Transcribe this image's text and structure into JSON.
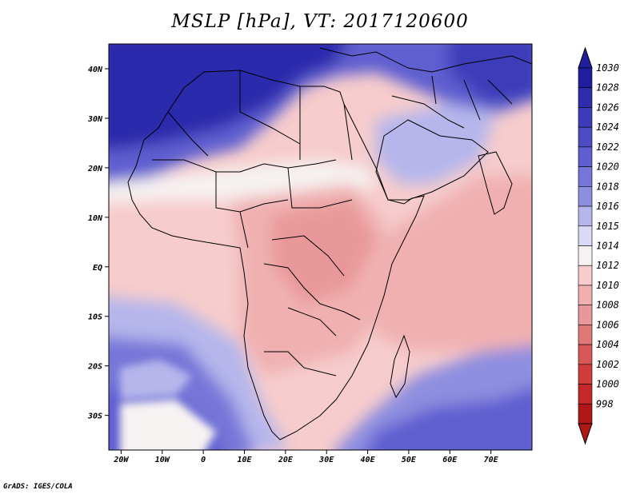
{
  "title": "MSLP [hPa], VT: 2017120600",
  "credit": "GrADS: IGES/COLA",
  "map": {
    "variable": "MSLP",
    "units": "hPa",
    "valid_time": "2017120600",
    "lon_range": [
      -23,
      80
    ],
    "lat_range": [
      -37,
      45
    ],
    "x_ticks": [
      "20W",
      "10W",
      "0",
      "10E",
      "20E",
      "30E",
      "40E",
      "50E",
      "60E",
      "70E"
    ],
    "x_tick_values": [
      -20,
      -10,
      0,
      10,
      20,
      30,
      40,
      50,
      60,
      70
    ],
    "y_ticks": [
      "40N",
      "30N",
      "20N",
      "10N",
      "EQ",
      "10S",
      "20S",
      "30S"
    ],
    "y_tick_values": [
      40,
      30,
      20,
      10,
      0,
      -10,
      -20,
      -30
    ]
  },
  "colorbar": {
    "labels": [
      "1030",
      "1028",
      "1026",
      "1024",
      "1022",
      "1020",
      "1018",
      "1016",
      "1015",
      "1014",
      "1012",
      "1010",
      "1008",
      "1006",
      "1004",
      "1002",
      "1000",
      "998"
    ],
    "colors": [
      "#1e1e9e",
      "#2c2cac",
      "#3c3cba",
      "#4c4cc4",
      "#5e5ed0",
      "#7676d8",
      "#8e8ee0",
      "#b6b6ec",
      "#dadaf6",
      "#f6f2f2",
      "#f6cccc",
      "#f0b0b0",
      "#e89898",
      "#e07878",
      "#d85858",
      "#d03c3c",
      "#c42828",
      "#b01818"
    ]
  }
}
